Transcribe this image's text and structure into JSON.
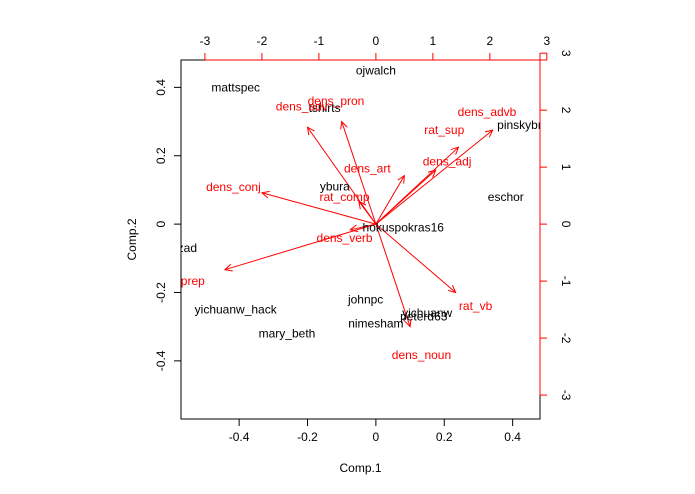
{
  "chart_data": {
    "type": "scatter",
    "subtype": "biplot",
    "xlabel": "Comp.1",
    "ylabel": "Comp.2",
    "xlim": [
      -0.57,
      0.48
    ],
    "ylim": [
      -0.57,
      0.48
    ],
    "bottom_ticks": [
      -0.4,
      -0.2,
      0.0,
      0.2,
      0.4
    ],
    "left_ticks": [
      -0.4,
      -0.2,
      0.0,
      0.2,
      0.4
    ],
    "top_ticks": [
      -3,
      -2,
      -1,
      0,
      1,
      2,
      3
    ],
    "right_ticks": [
      -3,
      -2,
      -1,
      0,
      1,
      2,
      3
    ],
    "loading_scale": 6.0,
    "points": [
      {
        "label": "ojwalch",
        "x": 0.0,
        "y": 0.45
      },
      {
        "label": "mattspec",
        "x": -0.41,
        "y": 0.4
      },
      {
        "label": "tshirts",
        "x": -0.15,
        "y": 0.34
      },
      {
        "label": "pinskybr",
        "x": 0.42,
        "y": 0.29
      },
      {
        "label": "ybura",
        "x": -0.12,
        "y": 0.11
      },
      {
        "label": "eschor",
        "x": 0.38,
        "y": 0.08
      },
      {
        "label": "hokuspokras16",
        "x": 0.08,
        "y": -0.01
      },
      {
        "label": "sazad",
        "x": -0.57,
        "y": -0.07
      },
      {
        "label": "johnpc",
        "x": -0.03,
        "y": -0.22
      },
      {
        "label": "yichuanw_hack",
        "x": -0.41,
        "y": -0.25
      },
      {
        "label": "yichuanw",
        "x": 0.15,
        "y": -0.26
      },
      {
        "label": "peterd63",
        "x": 0.14,
        "y": -0.27
      },
      {
        "label": "nimesham",
        "x": 0.0,
        "y": -0.29
      },
      {
        "label": "mary_beth",
        "x": -0.26,
        "y": -0.32
      }
    ],
    "loadings": [
      {
        "label": "dens_pron",
        "x": -0.6,
        "y": 1.8,
        "label_x": -0.7,
        "label_y": 2.16
      },
      {
        "label": "dens_adv",
        "x": -1.2,
        "y": 1.7,
        "label_x": -1.3,
        "label_y": 2.06
      },
      {
        "label": "dens_advb",
        "x": 2.05,
        "y": 1.65,
        "label_x": 1.95,
        "label_y": 1.97
      },
      {
        "label": "rat_sup",
        "x": 1.45,
        "y": 1.35,
        "label_x": 1.2,
        "label_y": 1.65
      },
      {
        "label": "dens_adj",
        "x": 1.05,
        "y": 0.95,
        "label_x": 1.25,
        "label_y": 1.1
      },
      {
        "label": "dens_art",
        "x": 0.5,
        "y": 0.85,
        "label_x": -0.15,
        "label_y": 0.98
      },
      {
        "label": "dens_conj",
        "x": -2.0,
        "y": 0.55,
        "label_x": -2.5,
        "label_y": 0.65
      },
      {
        "label": "rat_comp",
        "x": -0.3,
        "y": 0.4,
        "label_x": -0.55,
        "label_y": 0.48
      },
      {
        "label": "dens_verb",
        "x": -0.45,
        "y": -0.1,
        "label_x": -0.55,
        "label_y": -0.24
      },
      {
        "label": "dens_prep",
        "x": -2.65,
        "y": -0.8,
        "label_x": -3.5,
        "label_y": -1.0
      },
      {
        "label": "rat_vb",
        "x": 1.4,
        "y": -1.2,
        "label_x": 1.75,
        "label_y": -1.44
      },
      {
        "label": "dens_noun",
        "x": 0.6,
        "y": -1.8,
        "label_x": 0.8,
        "label_y": -2.3
      }
    ],
    "point_color": "#000000",
    "loading_color": "#ff0000",
    "frame_color": "#000000"
  }
}
